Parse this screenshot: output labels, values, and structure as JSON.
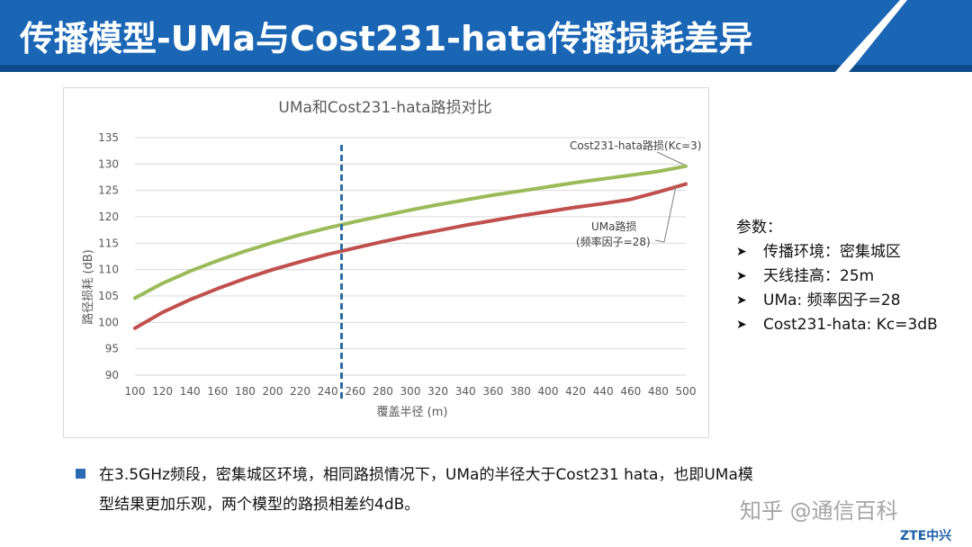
{
  "slide_title": "传播模型-UMa与Cost231-hata传播损耗差异",
  "chart_data": {
    "type": "line",
    "title": "UMa和Cost231-hata路损对比",
    "xlabel": "覆盖半径 (m)",
    "ylabel": "路径损耗 (dB)",
    "x": [
      100,
      120,
      140,
      160,
      180,
      200,
      220,
      240,
      260,
      280,
      300,
      320,
      340,
      360,
      380,
      400,
      420,
      440,
      460,
      480,
      500
    ],
    "ylim": [
      90,
      135
    ],
    "xlim": [
      100,
      500
    ],
    "yticks": [
      90,
      95,
      100,
      105,
      110,
      115,
      120,
      125,
      130,
      135
    ],
    "grid": true,
    "series": [
      {
        "name": "Cost231-hata路损(Kc=3)",
        "color": "#9bbb59",
        "values": [
          104.6,
          107.4,
          109.7,
          111.7,
          113.5,
          115.1,
          116.6,
          117.9,
          119.1,
          120.2,
          121.3,
          122.3,
          123.2,
          124.1,
          124.9,
          125.7,
          126.5,
          127.2,
          127.9,
          128.6,
          129.6
        ]
      },
      {
        "name_line1": "UMa路损",
        "name_line2": "(频率因子=28)",
        "color": "#c0504d",
        "values": [
          98.9,
          101.9,
          104.3,
          106.4,
          108.3,
          110.0,
          111.5,
          112.9,
          114.1,
          115.3,
          116.4,
          117.4,
          118.4,
          119.3,
          120.2,
          121.0,
          121.8,
          122.5,
          123.3,
          124.7,
          126.2
        ]
      }
    ],
    "marker_line_x": 250,
    "marker_line_color": "#2e6da4"
  },
  "params": {
    "title": "参数：",
    "items": [
      "传播环境：密集城区",
      "天线挂高：25m",
      "UMa: 频率因子=28",
      "Cost231-hata: Kc=3dB"
    ]
  },
  "bullet": {
    "line1": "在3.5GHz频段，密集城区环境，相同路损情况下，UMa的半径大于Cost231 hata，也即UMa模",
    "line2": "型结果更加乐观，两个模型的路损相差约4dB。"
  },
  "watermark": "知乎 @通信百科",
  "logo": "ZTE中兴",
  "colors": {
    "banner": "#1565b4",
    "accent": "#2a6db5"
  }
}
